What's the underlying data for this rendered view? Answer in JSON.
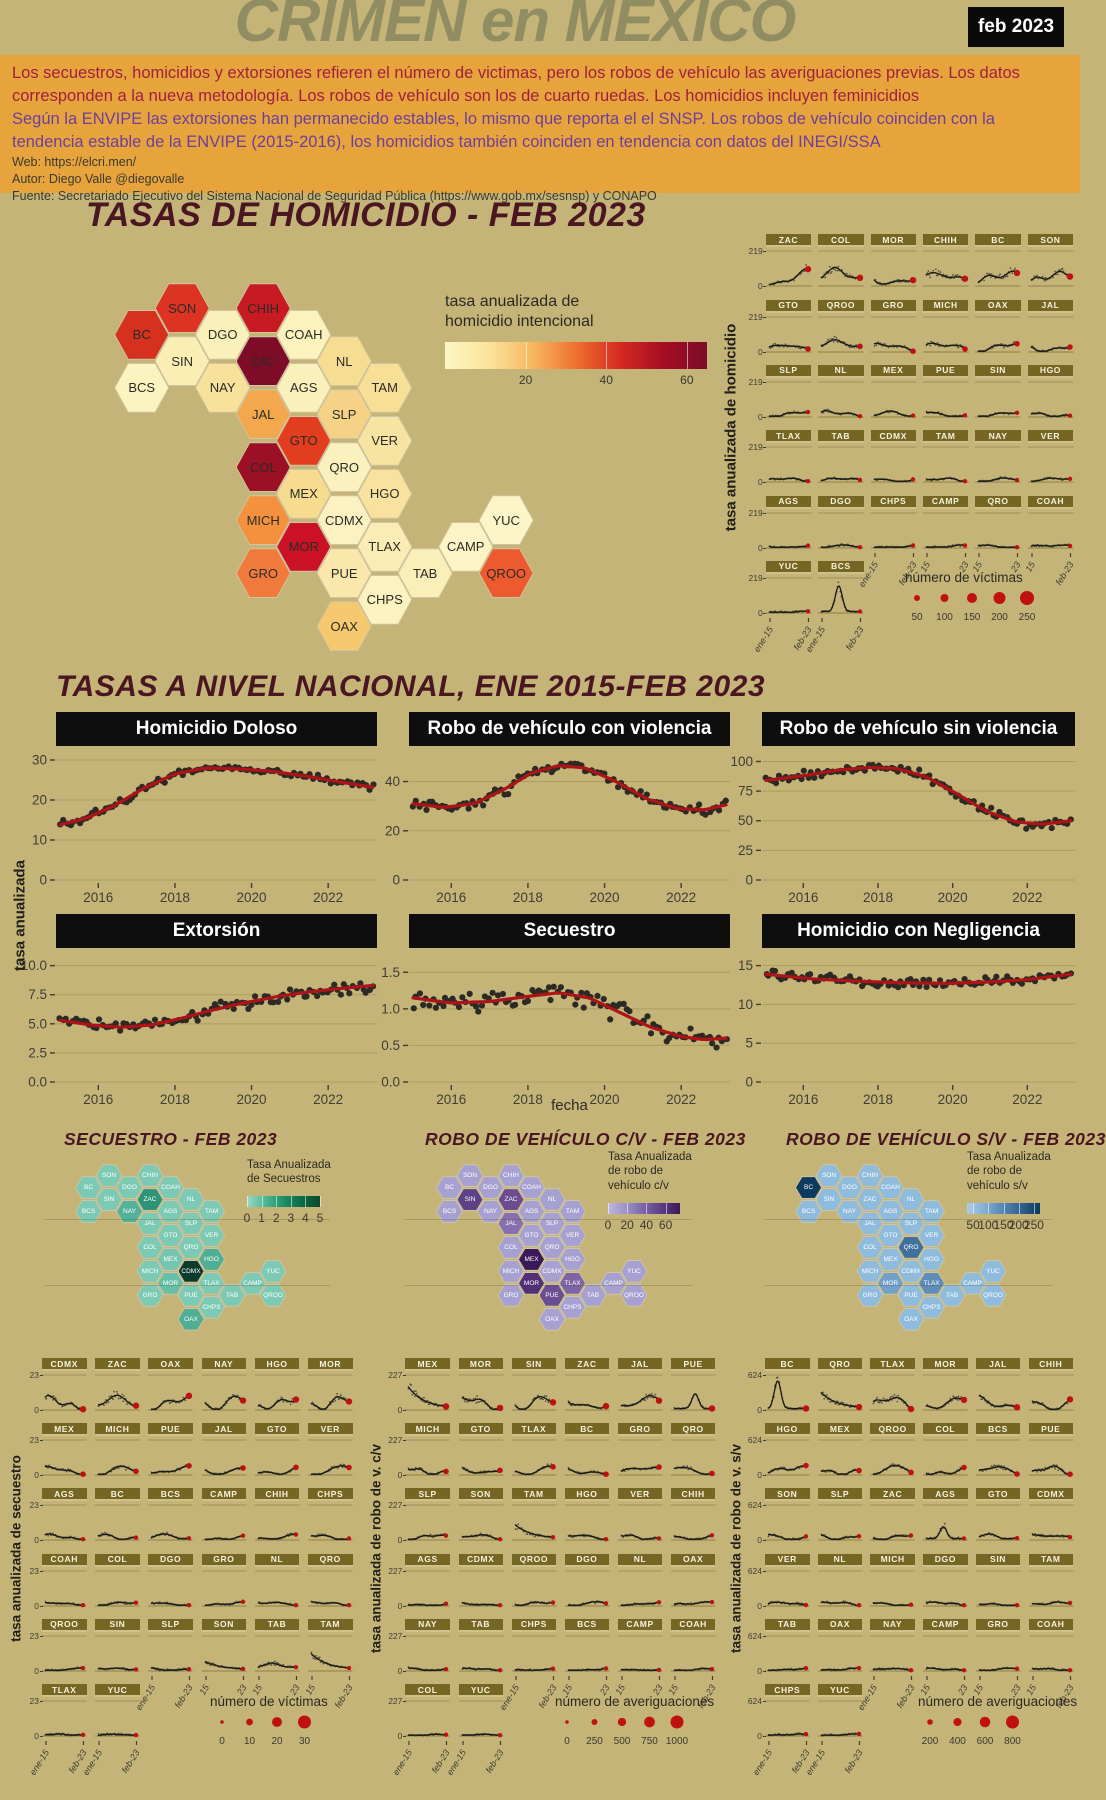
{
  "page": {
    "title": "CRIMEN en MEXICO",
    "date_badge": "feb 2023",
    "background": "#c5b477",
    "accent_orange": "#e8a43c",
    "title_color": "#8f8d61",
    "section_title_color": "#491621",
    "trend_red": "#ae1417",
    "dot_red": "#bf1110",
    "scatter_dark": "#2b2a24"
  },
  "intro": {
    "p1": "Los secuestros, homicidios y extorsiones refieren el número de victimas, pero los robos de vehículo las averiguaciones previas. Los datos corresponden a la nueva metodología. Los robos de vehículo son los de cuarto ruedas. Los homicidios incluyen feminicidios",
    "p2": "Según la ENVIPE las extorsiones han permanecido estables, lo mismo que reporta el el SNSP. Los robos de vehículo coinciden con la tendencia estable de la ENVIPE (2015-2016), los homicidios también coinciden en tendencia con datos del INEGI/SSA",
    "web": "Web: https://elcri.men/",
    "autor": "Autor: Diego Valle @diegovalle",
    "fuente": "Fuente: Secretariado Ejecutivo del Sistema Nacional de Seguridad Pública (https://www.gob.mx/sesnsp) y CONAPO"
  },
  "hexmap_layout": [
    {
      "id": "BC",
      "c": 0,
      "r": 1
    },
    {
      "id": "BCS",
      "c": 0,
      "r": 2
    },
    {
      "id": "SON",
      "c": 1,
      "r": 0.5
    },
    {
      "id": "SIN",
      "c": 1,
      "r": 1.5
    },
    {
      "id": "DGO",
      "c": 2,
      "r": 1
    },
    {
      "id": "NAY",
      "c": 2,
      "r": 2
    },
    {
      "id": "CHIH",
      "c": 3,
      "r": 0.5
    },
    {
      "id": "ZAC",
      "c": 3,
      "r": 1.5
    },
    {
      "id": "JAL",
      "c": 3,
      "r": 2.5
    },
    {
      "id": "COL",
      "c": 3,
      "r": 3.5
    },
    {
      "id": "MICH",
      "c": 3,
      "r": 4.5
    },
    {
      "id": "GRO",
      "c": 3,
      "r": 5.5
    },
    {
      "id": "COAH",
      "c": 4,
      "r": 1
    },
    {
      "id": "AGS",
      "c": 4,
      "r": 2
    },
    {
      "id": "GTO",
      "c": 4,
      "r": 3
    },
    {
      "id": "MEX",
      "c": 4,
      "r": 4
    },
    {
      "id": "MOR",
      "c": 4,
      "r": 5
    },
    {
      "id": "NL",
      "c": 5,
      "r": 1.5
    },
    {
      "id": "SLP",
      "c": 5,
      "r": 2.5
    },
    {
      "id": "QRO",
      "c": 5,
      "r": 3.5
    },
    {
      "id": "CDMX",
      "c": 5,
      "r": 4.5
    },
    {
      "id": "PUE",
      "c": 5,
      "r": 5.5
    },
    {
      "id": "OAX",
      "c": 5,
      "r": 6.5
    },
    {
      "id": "TAM",
      "c": 6,
      "r": 2
    },
    {
      "id": "VER",
      "c": 6,
      "r": 3
    },
    {
      "id": "HGO",
      "c": 6,
      "r": 4
    },
    {
      "id": "TLAX",
      "c": 6,
      "r": 5
    },
    {
      "id": "CHPS",
      "c": 6,
      "r": 6
    },
    {
      "id": "TAB",
      "c": 7,
      "r": 5.5
    },
    {
      "id": "CAMP",
      "c": 8,
      "r": 5
    },
    {
      "id": "YUC",
      "c": 9,
      "r": 4.5
    },
    {
      "id": "QROO",
      "c": 9,
      "r": 5.5
    }
  ],
  "homicide": {
    "title": "TASAS DE HOMICIDIO - FEB 2023",
    "legend": {
      "lines": [
        "tasa anualizada de",
        "homicidio intencional"
      ],
      "ticks": [
        20,
        40,
        60
      ],
      "domain": [
        0,
        65
      ],
      "gradient": [
        "#fdf6c5",
        "#fbe39b",
        "#f7b95f",
        "#ee7030",
        "#d62b20",
        "#a40e23",
        "#7c0b27"
      ]
    },
    "map_colors": {
      "BC": "#d6301f",
      "BCS": "#fbf3c0",
      "SON": "#dd3322",
      "SIN": "#fbeeb5",
      "CHIH": "#c81a23",
      "DGO": "#faf0ba",
      "COAH": "#fbf2bd",
      "ZAC": "#7e0c28",
      "NL": "#f7dd92",
      "NAY": "#f8e19a",
      "AGS": "#faf0bb",
      "TAM": "#f7df96",
      "JAL": "#f4a84e",
      "SLP": "#f6d287",
      "GTO": "#e23d1f",
      "VER": "#f8e4a1",
      "COL": "#9c1026",
      "QRO": "#fbf1bf",
      "MEX": "#f7dc90",
      "HGO": "#f8e29e",
      "MICH": "#f3913f",
      "CDMX": "#fbf1c1",
      "YUC": "#fcf5c8",
      "MOR": "#ca1126",
      "TLAX": "#faecb4",
      "CAMP": "#fcf4c5",
      "GRO": "#f07a3c",
      "PUE": "#f9e7ab",
      "TAB": "#faefb9",
      "QROO": "#ee5a2f",
      "CHPS": "#fbf2bf",
      "OAX": "#f7c96f"
    },
    "grid": {
      "ylabel": "tasa anualizada de homicidio",
      "ytop": "219",
      "ybottom": "0",
      "states": [
        "ZAC",
        "COL",
        "MOR",
        "CHIH",
        "BC",
        "SON",
        "GTO",
        "QROO",
        "GRO",
        "MICH",
        "OAX",
        "JAL",
        "SLP",
        "NL",
        "MEX",
        "PUE",
        "SIN",
        "HGO",
        "TLAX",
        "TAB",
        "CDMX",
        "TAM",
        "NAY",
        "VER",
        "AGS",
        "DGO",
        "CHPS",
        "CAMP",
        "QRO",
        "COAH",
        "YUC",
        "BCS"
      ],
      "size_legend": {
        "title": "número de víctimas",
        "values": [
          "50",
          "100",
          "150",
          "200",
          "250"
        ]
      }
    }
  },
  "x_axis": {
    "first": "ene-15",
    "last": "feb-23",
    "mid15": "15",
    "mid23": "23"
  },
  "national": {
    "title": "TASAS A NIVEL NACIONAL, ENE 2015-FEB 2023",
    "ylabel": "tasa anualizada",
    "xlabel": "fecha",
    "xticks": [
      "2016",
      "2018",
      "2020",
      "2022"
    ]
  },
  "chart_data": [
    {
      "type": "scatter",
      "name": "Homicidio Doloso",
      "yticks": [
        "30",
        "20",
        "10",
        "0"
      ],
      "ylim": [
        0,
        32
      ],
      "xlim": [
        2015,
        2023.17
      ],
      "xticks": [
        2016,
        2018,
        2020,
        2022
      ],
      "trend": {
        "x": [
          2015,
          2015.7,
          2016.4,
          2017.2,
          2018,
          2018.8,
          2019.6,
          2020.5,
          2021.4,
          2022.3,
          2023.17
        ],
        "y": [
          13.8,
          15.5,
          18.5,
          23,
          26.5,
          28,
          27.8,
          27.2,
          26,
          24.5,
          23.2
        ]
      }
    },
    {
      "type": "scatter",
      "name": "Robo de vehículo con violencia",
      "yticks": [
        "40",
        "20",
        "0"
      ],
      "ylim": [
        0,
        52
      ],
      "xlim": [
        2015,
        2023.17
      ],
      "xticks": [
        2016,
        2018,
        2020,
        2022
      ],
      "trend": {
        "x": [
          2015,
          2015.8,
          2016.6,
          2017.4,
          2018.1,
          2018.8,
          2019.5,
          2020.3,
          2021.1,
          2021.9,
          2022.6,
          2023.17
        ],
        "y": [
          31,
          29.5,
          31,
          37,
          43.5,
          46.5,
          45.5,
          40,
          33,
          29,
          28.5,
          30.5
        ]
      }
    },
    {
      "type": "scatter",
      "name": "Robo de vehículo sin violencia",
      "yticks": [
        "100",
        "75",
        "50",
        "25",
        "0"
      ],
      "ylim": [
        0,
        108
      ],
      "xlim": [
        2015,
        2023.17
      ],
      "xticks": [
        2016,
        2018,
        2020,
        2022
      ],
      "trend": {
        "x": [
          2015,
          2016,
          2017,
          2017.8,
          2018.5,
          2019.3,
          2020.1,
          2020.9,
          2021.7,
          2022.4,
          2023.17
        ],
        "y": [
          84,
          88,
          93,
          95,
          94,
          87,
          73,
          58,
          49,
          47,
          50
        ]
      }
    },
    {
      "type": "scatter",
      "name": "Extorsión",
      "yticks": [
        "10.0",
        "7.5",
        "5.0",
        "2.5",
        "0.0"
      ],
      "ylim": [
        0,
        11
      ],
      "xlim": [
        2015,
        2023.17
      ],
      "xticks": [
        2016,
        2018,
        2020,
        2022
      ],
      "trend": {
        "x": [
          2015,
          2015.8,
          2016.6,
          2017.4,
          2018.2,
          2019,
          2019.8,
          2020.6,
          2021.4,
          2022.2,
          2023.17
        ],
        "y": [
          5.3,
          4.9,
          4.7,
          4.9,
          5.5,
          6.2,
          6.8,
          7.3,
          7.7,
          8,
          8.3
        ]
      }
    },
    {
      "type": "scatter",
      "name": "Secuestro",
      "yticks": [
        "1.5",
        "1.0",
        "0.5",
        "0.0"
      ],
      "ylim": [
        0,
        1.75
      ],
      "xlim": [
        2015,
        2023.17
      ],
      "xticks": [
        2016,
        2018,
        2020,
        2022
      ],
      "trend": {
        "x": [
          2015,
          2016,
          2017,
          2018,
          2018.8,
          2019.6,
          2020.4,
          2021.2,
          2022,
          2022.6,
          2023.17
        ],
        "y": [
          1.15,
          1.08,
          1.1,
          1.17,
          1.22,
          1.15,
          0.95,
          0.75,
          0.62,
          0.58,
          0.6
        ]
      }
    },
    {
      "type": "scatter",
      "name": "Homicidio con Negligencia",
      "yticks": [
        "15",
        "10",
        "5",
        "0"
      ],
      "ylim": [
        0,
        16.5
      ],
      "xlim": [
        2015,
        2023.17
      ],
      "xticks": [
        2016,
        2018,
        2020,
        2022
      ],
      "trend": {
        "x": [
          2015,
          2016.2,
          2017.4,
          2018.6,
          2019.8,
          2021,
          2022,
          2023.17
        ],
        "y": [
          13.9,
          13.3,
          13,
          12.8,
          12.7,
          12.9,
          13.2,
          13.9
        ]
      }
    },
    {
      "type": "heatmap",
      "name": "TASAS DE HOMICIDIO - FEB 2023",
      "note": "hex state map, values encoded as colors in homicide.map_colors"
    },
    {
      "type": "heatmap",
      "name": "SECUESTRO - FEB 2023",
      "note": "hex state map, colors in secuestro.map_overrides"
    },
    {
      "type": "heatmap",
      "name": "ROBO DE VEHÍCULO C/V - FEB 2023",
      "note": "hex state map, colors in robo_cv.map_overrides"
    },
    {
      "type": "heatmap",
      "name": "ROBO DE VEHÍCULO S/V - FEB 2023",
      "note": "hex state map, colors in robo_sv.map_overrides"
    }
  ],
  "secuestro": {
    "title": "SECUESTRO - FEB 2023",
    "legend": {
      "lines": [
        "Tasa Anualizada",
        "de Secuestros"
      ],
      "ticks": [
        "0",
        "1",
        "2",
        "3",
        "4",
        "5"
      ],
      "gradient": [
        "#98d9c4",
        "#4fb796",
        "#1d8f66",
        "#0d6a44",
        "#084a2e"
      ]
    },
    "map_default": "#7ccab4",
    "map_overrides": {
      "ZAC": "#2e9478",
      "CDMX": "#0a3b2d",
      "NAY": "#55b29a",
      "HGO": "#4fae93",
      "OAX": "#4fae93",
      "MOR": "#68bfa8",
      "MEX": "#74c6b0"
    },
    "grid": {
      "ylabel": "tasa anualizada de secuestro",
      "ytop": "23",
      "ybottom": "0",
      "states": [
        "CDMX",
        "ZAC",
        "OAX",
        "NAY",
        "HGO",
        "MOR",
        "MEX",
        "MICH",
        "PUE",
        "JAL",
        "GTO",
        "VER",
        "AGS",
        "BC",
        "BCS",
        "CAMP",
        "CHIH",
        "CHPS",
        "COAH",
        "COL",
        "DGO",
        "GRO",
        "NL",
        "QRO",
        "QROO",
        "SIN",
        "SLP",
        "SON",
        "TAB",
        "TAM",
        "TLAX",
        "YUC"
      ],
      "size_legend": {
        "title": "número de víctimas",
        "values": [
          "0",
          "10",
          "20",
          "30"
        ]
      }
    }
  },
  "robo_cv": {
    "title": "ROBO DE VEHÍCULO C/V - FEB 2023",
    "legend": {
      "lines": [
        "Tasa Anualizada",
        "de robo de",
        "vehículo c/v"
      ],
      "ticks": [
        "0",
        "20",
        "40",
        "60"
      ],
      "gradient": [
        "#beb7dc",
        "#9c92c6",
        "#7a64a4",
        "#5a3c82",
        "#3b1a59"
      ]
    },
    "map_default": "#a7a1d2",
    "map_overrides": {
      "SIN": "#5e4186",
      "ZAC": "#6a4c8f",
      "JAL": "#8770af",
      "MEX": "#3a1958",
      "MOR": "#512f79",
      "PUE": "#6b4e92",
      "TLAX": "#7d64a4"
    },
    "grid": {
      "ylabel": "tasa anualizada de robo de v. c/v",
      "ytop": "227",
      "ybottom": "0",
      "states": [
        "MEX",
        "MOR",
        "SIN",
        "ZAC",
        "JAL",
        "PUE",
        "MICH",
        "GTO",
        "TLAX",
        "BC",
        "GRO",
        "QRO",
        "SLP",
        "SON",
        "TAM",
        "HGO",
        "VER",
        "CHIH",
        "AGS",
        "CDMX",
        "QROO",
        "DGO",
        "NL",
        "OAX",
        "NAY",
        "TAB",
        "CHPS",
        "BCS",
        "CAMP",
        "COAH",
        "COL",
        "YUC"
      ],
      "size_legend": {
        "title": "número de averiguaciones",
        "values": [
          "0",
          "250",
          "500",
          "750",
          "1000"
        ]
      }
    }
  },
  "robo_sv": {
    "title": "ROBO DE VEHÍCULO S/V - FEB 2023",
    "legend": {
      "lines": [
        "Tasa Anualizada",
        "de robo de",
        "vehículo s/v"
      ],
      "ticks": [
        "50",
        "100",
        "150",
        "200",
        "250"
      ],
      "gradient": [
        "#aecde6",
        "#7fadd3",
        "#5585b2",
        "#2f5f8c",
        "#0e3a5f"
      ]
    },
    "map_default": "#8fbcdc",
    "map_overrides": {
      "BC": "#0d3a5f",
      "QRO": "#40719c",
      "TLAX": "#5d8db8",
      "MOR": "#71a1c9"
    },
    "grid": {
      "ylabel": "tasa anualizada de robo de v. s/v",
      "ytop": "624",
      "ybottom": "0",
      "states": [
        "BC",
        "QRO",
        "TLAX",
        "MOR",
        "JAL",
        "CHIH",
        "HGO",
        "MEX",
        "QROO",
        "COL",
        "BCS",
        "PUE",
        "SON",
        "SLP",
        "ZAC",
        "AGS",
        "GTO",
        "CDMX",
        "VER",
        "NL",
        "MICH",
        "DGO",
        "SIN",
        "TAM",
        "TAB",
        "OAX",
        "NAY",
        "CAMP",
        "GRO",
        "COAH",
        "CHPS",
        "YUC"
      ],
      "size_legend": {
        "title": "número de averiguaciones",
        "values": [
          "200",
          "400",
          "600",
          "800"
        ]
      }
    }
  }
}
